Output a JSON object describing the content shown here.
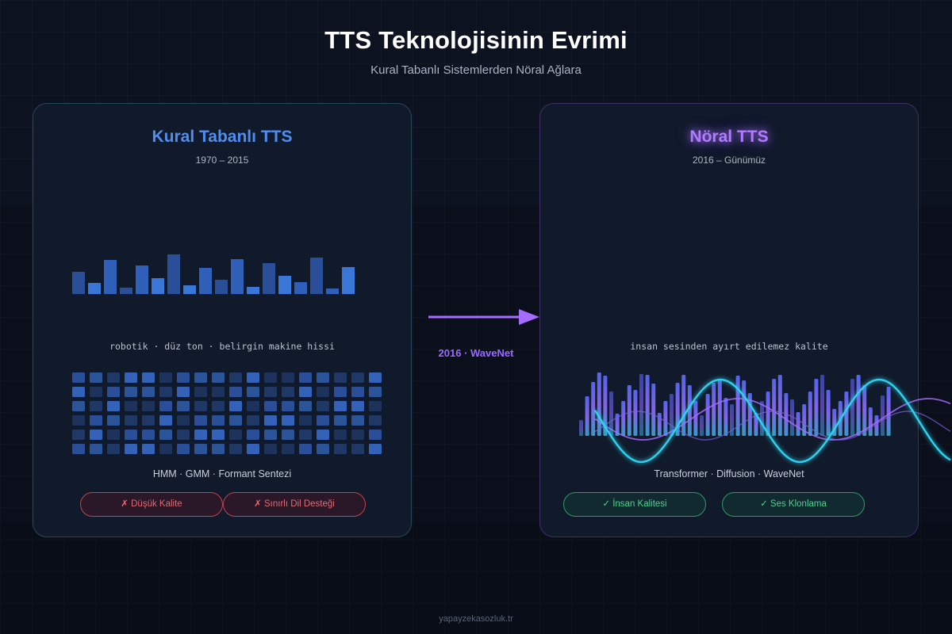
{
  "header": {
    "title": "TTS Teknolojisinin Evrimi",
    "subtitle": "Kural Tabanlı Sistemlerden Nöral Ağlara"
  },
  "left_panel": {
    "title": "Kural Tabanlı TTS",
    "period": "1970 – 2015",
    "description": "robotik · düz ton · belirgin makine hissi",
    "techniques": "HMM · GMM · Formant Sentezi",
    "chips": [
      "✗ Düşük Kalite",
      "✗ Sınırlı Dil Desteği"
    ],
    "bar_levels": [
      0.55,
      0.28,
      0.85,
      0.15,
      0.72,
      0.4,
      1.0,
      0.22,
      0.65,
      0.35,
      0.88,
      0.18,
      0.78,
      0.45,
      0.3,
      0.92,
      0.14,
      0.68
    ],
    "grid_rows": 6,
    "grid_cols": 18
  },
  "right_panel": {
    "title": "Nöral TTS",
    "period": "2016 – Günümüz",
    "description": "insan sesinden ayırt edilemez kalite",
    "techniques": "Transformer · Diffusion · WaveNet",
    "chips": [
      "✓ İnsan Kalitesi",
      "✓ Ses Klonlama"
    ],
    "bar_levels": [
      0.25,
      0.62,
      0.85,
      1.0,
      0.95,
      0.7,
      0.35,
      0.55,
      0.8,
      0.72,
      0.98,
      0.96,
      0.82,
      0.36,
      0.55,
      0.66,
      0.84,
      0.96,
      0.8,
      0.55,
      0.32,
      0.66,
      0.84,
      0.88,
      0.6,
      0.5,
      0.95,
      0.88,
      0.68,
      0.36,
      0.55,
      0.7,
      0.9,
      0.96,
      0.68,
      0.58,
      0.38,
      0.5,
      0.7,
      0.9,
      0.96,
      0.72,
      0.42,
      0.55,
      0.7,
      0.9,
      0.96,
      0.8,
      0.45,
      0.32,
      0.64,
      0.78
    ]
  },
  "transition": {
    "label": "2016 · WaveNet"
  },
  "footer": {
    "site": "yapayzekasozluk.tr"
  },
  "colors": {
    "rule_accent": "#4f8ef0",
    "neural_accent": "#a66bff",
    "wave_cyan": "#2ed3f0",
    "bad": "#e56a74",
    "good": "#4cd38e"
  }
}
